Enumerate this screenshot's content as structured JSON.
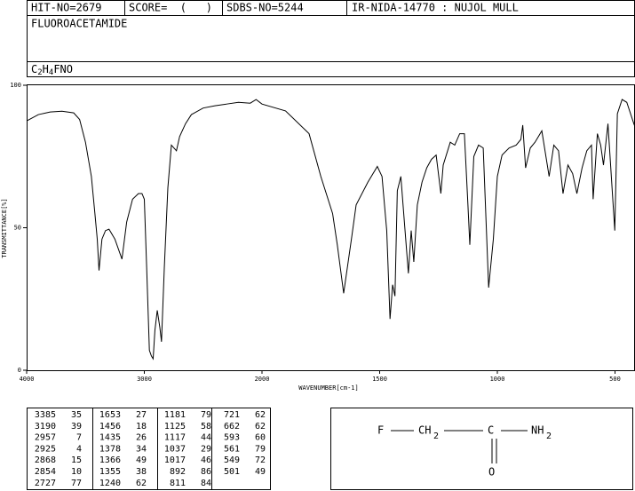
{
  "header": {
    "hit_no": "HIT-NO=2679",
    "score": "SCORE=  (   )",
    "sdbs_no": "SDBS-NO=5244",
    "method": "IR-NIDA-14770 : NUJOL MULL",
    "name": "FLUOROACETAMIDE",
    "formula": [
      {
        "text": "C"
      },
      {
        "text": "2",
        "sub": true
      },
      {
        "text": "H"
      },
      {
        "text": "4",
        "sub": true
      },
      {
        "text": "FNO"
      }
    ]
  },
  "chart_data": {
    "type": "line",
    "color": "#000000",
    "xlabel": "WAVENUMBER[cm-1]",
    "ylabel": "TRANSMITTANCE[%]",
    "xlim": [
      4000,
      400
    ],
    "ylim": [
      0,
      100
    ],
    "xticks": [
      4000,
      3000,
      2000,
      1500,
      1000,
      500
    ],
    "yticks": [
      0,
      50,
      100
    ],
    "x": [
      4000,
      3900,
      3800,
      3700,
      3600,
      3550,
      3500,
      3450,
      3420,
      3400,
      3385,
      3360,
      3330,
      3300,
      3250,
      3190,
      3150,
      3100,
      3050,
      3020,
      3000,
      2980,
      2957,
      2940,
      2925,
      2910,
      2890,
      2868,
      2854,
      2830,
      2800,
      2770,
      2727,
      2700,
      2650,
      2600,
      2500,
      2400,
      2300,
      2200,
      2100,
      2050,
      2000,
      1900,
      1800,
      1750,
      1700,
      1680,
      1653,
      1620,
      1600,
      1550,
      1510,
      1490,
      1470,
      1456,
      1445,
      1435,
      1425,
      1410,
      1395,
      1378,
      1366,
      1355,
      1340,
      1320,
      1300,
      1280,
      1260,
      1240,
      1230,
      1200,
      1181,
      1160,
      1140,
      1125,
      1117,
      1100,
      1080,
      1060,
      1037,
      1017,
      1000,
      980,
      950,
      920,
      900,
      892,
      880,
      860,
      840,
      811,
      780,
      760,
      740,
      721,
      700,
      680,
      662,
      640,
      620,
      600,
      593,
      575,
      561,
      549,
      530,
      501,
      490,
      470,
      450,
      420,
      400
    ],
    "values": [
      87.5,
      89.7,
      90.6,
      90.9,
      90.3,
      88,
      80,
      68,
      55,
      46,
      35,
      46,
      49,
      49.5,
      46,
      39,
      52,
      60,
      62,
      62,
      60,
      36,
      7,
      5,
      4,
      14,
      21,
      15,
      10,
      36,
      64,
      79,
      77,
      82,
      86.5,
      89.7,
      92,
      92.8,
      93.4,
      94,
      93.7,
      95,
      93.4,
      91,
      83,
      68,
      55,
      44,
      27,
      46,
      58,
      66,
      71.5,
      68,
      49,
      18,
      30,
      26,
      63,
      68,
      52,
      34,
      49,
      38,
      58,
      66,
      71,
      74,
      75.5,
      62,
      72,
      80,
      79,
      83,
      83,
      58,
      44,
      75,
      79,
      78,
      29,
      46,
      68,
      75.5,
      78,
      79,
      81,
      86,
      71,
      78,
      80,
      84,
      68,
      79,
      77,
      62,
      72,
      69,
      62,
      71,
      77,
      79,
      60,
      83,
      79,
      72,
      86.5,
      49,
      90,
      95,
      94,
      86.5,
      82
    ]
  },
  "peak_table": [
    [
      [
        3385,
        35
      ],
      [
        3190,
        39
      ],
      [
        2957,
        7
      ],
      [
        2925,
        4
      ],
      [
        2868,
        15
      ],
      [
        2854,
        10
      ],
      [
        2727,
        77
      ]
    ],
    [
      [
        1653,
        27
      ],
      [
        1456,
        18
      ],
      [
        1435,
        26
      ],
      [
        1378,
        34
      ],
      [
        1366,
        49
      ],
      [
        1355,
        38
      ],
      [
        1240,
        62
      ]
    ],
    [
      [
        1181,
        79
      ],
      [
        1125,
        58
      ],
      [
        1117,
        44
      ],
      [
        1037,
        29
      ],
      [
        1017,
        46
      ],
      [
        892,
        86
      ],
      [
        811,
        84
      ]
    ],
    [
      [
        721,
        62
      ],
      [
        662,
        62
      ],
      [
        593,
        60
      ],
      [
        561,
        79
      ],
      [
        549,
        72
      ],
      [
        501,
        49
      ]
    ]
  ],
  "structure": {
    "f": "F",
    "ch": "CH",
    "ch_sub": "2",
    "c": "C",
    "nh": "NH",
    "nh_sub": "2",
    "o": "O"
  }
}
